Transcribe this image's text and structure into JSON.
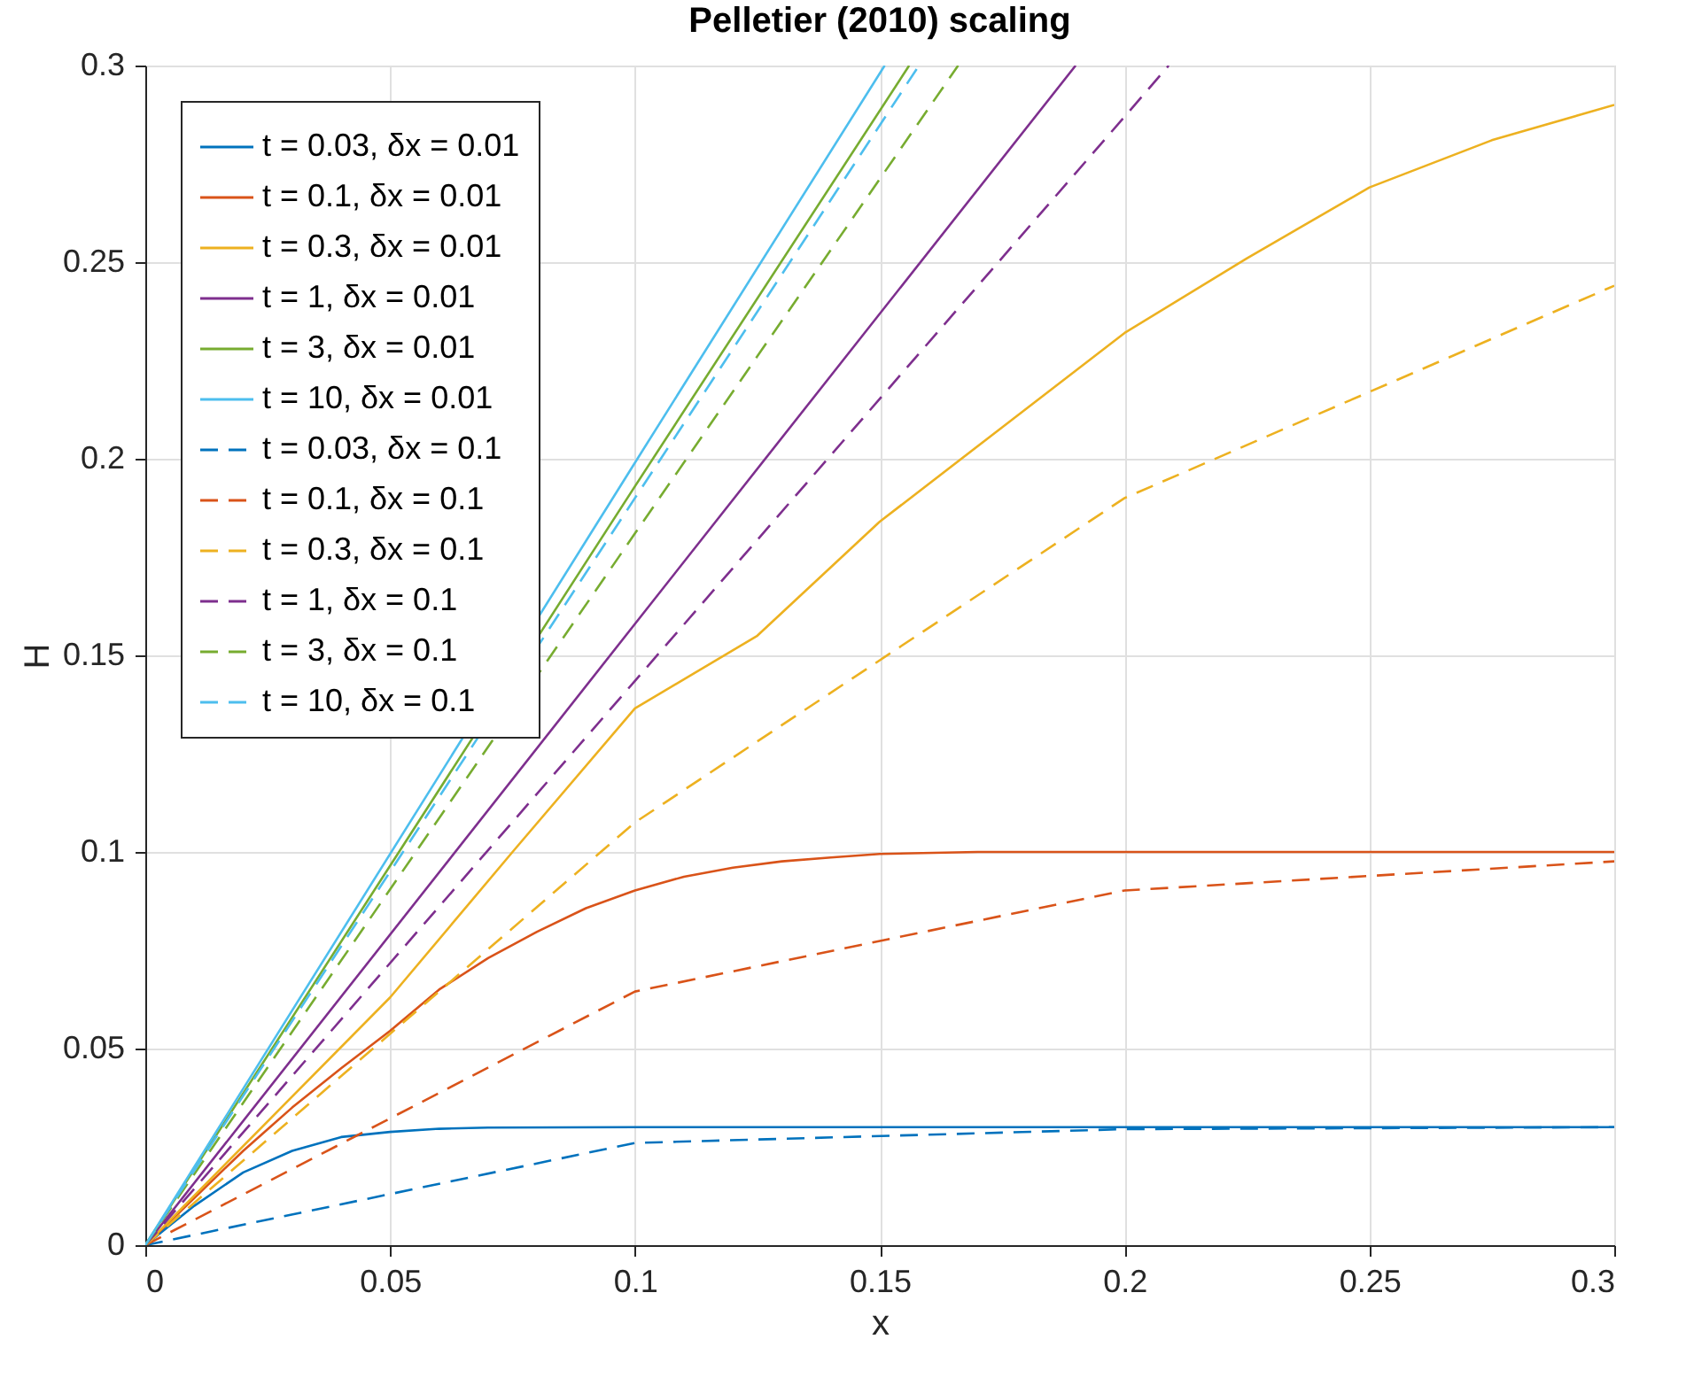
{
  "chart_data": {
    "type": "line",
    "title": "Pelletier (2010) scaling",
    "xlabel": "x",
    "ylabel": "H",
    "xlim": [
      0,
      0.3
    ],
    "ylim": [
      0,
      0.3
    ],
    "xticks": [
      0,
      0.05,
      0.1,
      0.15,
      0.2,
      0.25,
      0.3
    ],
    "yticks": [
      0,
      0.05,
      0.1,
      0.15,
      0.2,
      0.25,
      0.3
    ],
    "grid": true,
    "legend": "top left",
    "marker": "none",
    "series": [
      {
        "name": "t = 0.03, δx = 0.01",
        "color": "#0072bd",
        "line_style": "solid",
        "x": [
          0,
          0.01,
          0.02,
          0.03,
          0.04,
          0.05,
          0.06,
          0.07,
          0.1,
          0.2,
          0.3
        ],
        "values": [
          0,
          0.01,
          0.0185,
          0.024,
          0.0275,
          0.0288,
          0.0296,
          0.0299,
          0.03,
          0.03,
          0.03
        ]
      },
      {
        "name": "t = 0.1, δx = 0.01",
        "color": "#d95319",
        "line_style": "solid",
        "x": [
          0,
          0.01,
          0.02,
          0.03,
          0.04,
          0.05,
          0.06,
          0.07,
          0.08,
          0.09,
          0.1,
          0.11,
          0.12,
          0.13,
          0.14,
          0.15,
          0.17,
          0.2,
          0.3
        ],
        "values": [
          0,
          0.012,
          0.024,
          0.035,
          0.045,
          0.0545,
          0.065,
          0.073,
          0.0797,
          0.0857,
          0.0902,
          0.0937,
          0.096,
          0.0976,
          0.0986,
          0.0995,
          0.1,
          0.1,
          0.1
        ]
      },
      {
        "name": "t = 0.3, δx = 0.01",
        "color": "#edb120",
        "line_style": "solid",
        "x": [
          0,
          0.05,
          0.075,
          0.1,
          0.125,
          0.15,
          0.175,
          0.2,
          0.225,
          0.25,
          0.275,
          0.3
        ],
        "values": [
          0,
          0.063,
          0.1,
          0.1365,
          0.155,
          0.184,
          0.208,
          0.232,
          0.251,
          0.269,
          0.281,
          0.29
        ]
      },
      {
        "name": "t = 1, δx = 0.01",
        "color": "#7e2f8e",
        "line_style": "solid",
        "x": [
          0,
          0.1,
          0.19
        ],
        "values": [
          0,
          0.158,
          0.3
        ]
      },
      {
        "name": "t = 3, δx = 0.01",
        "color": "#77ac30",
        "line_style": "solid",
        "x": [
          0,
          0.1,
          0.156
        ],
        "values": [
          0,
          0.193,
          0.3
        ]
      },
      {
        "name": "t = 10, δx = 0.01",
        "color": "#4dbeee",
        "line_style": "solid",
        "x": [
          0,
          0.1,
          0.151
        ],
        "values": [
          0,
          0.199,
          0.3
        ]
      },
      {
        "name": "t = 0.03, δx = 0.1",
        "color": "#0072bd",
        "line_style": "dashed",
        "x": [
          0,
          0.1,
          0.2,
          0.3
        ],
        "values": [
          0,
          0.026,
          0.0295,
          0.03
        ]
      },
      {
        "name": "t = 0.1, δx = 0.1",
        "color": "#d95319",
        "line_style": "dashed",
        "x": [
          0,
          0.1,
          0.2,
          0.3
        ],
        "values": [
          0,
          0.0645,
          0.0902,
          0.0976
        ]
      },
      {
        "name": "t = 0.3, δx = 0.1",
        "color": "#edb120",
        "line_style": "dashed",
        "x": [
          0,
          0.1,
          0.2,
          0.3
        ],
        "values": [
          0,
          0.1075,
          0.19,
          0.244
        ]
      },
      {
        "name": "t = 1, δx = 0.1",
        "color": "#7e2f8e",
        "line_style": "dashed",
        "x": [
          0,
          0.1,
          0.2,
          0.209
        ],
        "values": [
          0,
          0.1435,
          0.287,
          0.3
        ]
      },
      {
        "name": "t = 3, δx = 0.1",
        "color": "#77ac30",
        "line_style": "dashed",
        "x": [
          0,
          0.1,
          0.166
        ],
        "values": [
          0,
          0.181,
          0.3
        ]
      },
      {
        "name": "t = 10, δx = 0.1",
        "color": "#4dbeee",
        "line_style": "dashed",
        "x": [
          0,
          0.1,
          0.158
        ],
        "values": [
          0,
          0.19,
          0.3
        ]
      }
    ]
  }
}
